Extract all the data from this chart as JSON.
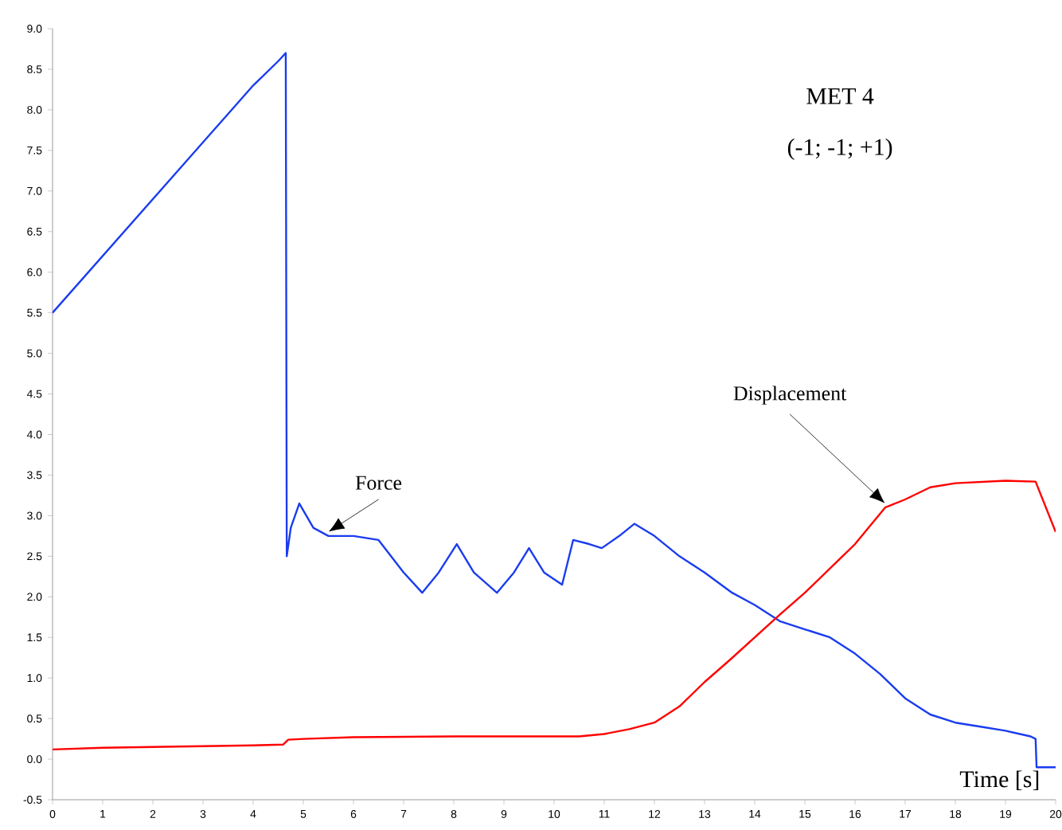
{
  "chart_data": {
    "type": "line",
    "xlabel": "Time  [s]",
    "annotations": [
      "MET 4",
      "(-1; -1; +1)"
    ],
    "series": [
      {
        "name": "Force",
        "color": "#1a3cf0",
        "x": [
          0,
          0.5,
          1,
          1.5,
          2,
          2.5,
          3,
          3.5,
          4,
          4.5,
          4.65,
          4.67,
          4.75,
          4.92,
          5.2,
          5.5,
          6,
          6.5,
          7,
          7.37,
          7.7,
          8.06,
          8.4,
          8.86,
          9.2,
          9.5,
          9.8,
          10.16,
          10.38,
          10.7,
          10.95,
          11.3,
          11.6,
          12,
          12.5,
          13,
          13.55,
          14,
          14.5,
          15,
          15.5,
          16,
          16.5,
          17,
          17.5,
          18,
          18.5,
          19,
          19.5,
          19.6,
          19.62,
          20
        ],
        "values": [
          5.5,
          5.85,
          6.2,
          6.55,
          6.9,
          7.25,
          7.6,
          7.95,
          8.3,
          8.6,
          8.7,
          2.5,
          2.85,
          3.15,
          2.85,
          2.75,
          2.75,
          2.7,
          2.3,
          2.05,
          2.3,
          2.65,
          2.3,
          2.05,
          2.3,
          2.6,
          2.3,
          2.15,
          2.7,
          2.65,
          2.6,
          2.75,
          2.9,
          2.75,
          2.5,
          2.3,
          2.05,
          1.9,
          1.7,
          1.6,
          1.5,
          1.3,
          1.05,
          0.75,
          0.55,
          0.45,
          0.4,
          0.35,
          0.28,
          0.25,
          -0.1,
          -0.1
        ]
      },
      {
        "name": "Displacement",
        "color": "#ff0000",
        "x": [
          0,
          1,
          2,
          3,
          4,
          4.6,
          4.7,
          5,
          6,
          8,
          10.5,
          11,
          11.5,
          12,
          12.5,
          13,
          13.5,
          14,
          14.5,
          15,
          15.5,
          16,
          16.6,
          17,
          17.5,
          18,
          19,
          19.6,
          20
        ],
        "values": [
          0.12,
          0.14,
          0.15,
          0.16,
          0.17,
          0.18,
          0.24,
          0.25,
          0.27,
          0.28,
          0.28,
          0.31,
          0.37,
          0.45,
          0.65,
          0.95,
          1.22,
          1.5,
          1.78,
          2.05,
          2.35,
          2.65,
          3.1,
          3.2,
          3.35,
          3.4,
          3.43,
          3.42,
          2.8
        ]
      }
    ],
    "xlim": [
      0,
      20
    ],
    "ylim": [
      -0.5,
      9.0
    ],
    "xticks": [
      0,
      1,
      2,
      3,
      4,
      5,
      6,
      7,
      8,
      9,
      10,
      11,
      12,
      13,
      14,
      15,
      16,
      17,
      18,
      19,
      20
    ],
    "yticks": [
      {
        "value": -0.5,
        "label": "-0.5"
      },
      {
        "value": 0,
        "label": "0.0"
      },
      {
        "value": 0.5,
        "label": "0.5"
      },
      {
        "value": 1,
        "label": "1.0"
      },
      {
        "value": 1.5,
        "label": "1.5"
      },
      {
        "value": 2,
        "label": "2.0"
      },
      {
        "value": 2.5,
        "label": "2.5"
      },
      {
        "value": 3,
        "label": "3.0"
      },
      {
        "value": 3.5,
        "label": "3.5"
      },
      {
        "value": 4,
        "label": "4.0"
      },
      {
        "value": 4.5,
        "label": "4.5"
      },
      {
        "value": 5,
        "label": "5.0"
      },
      {
        "value": 5.5,
        "label": "5.5"
      },
      {
        "value": 6,
        "label": "6.0"
      },
      {
        "value": 6.5,
        "label": "6.5"
      },
      {
        "value": 7,
        "label": "7.0"
      },
      {
        "value": 7.5,
        "label": "7.5"
      },
      {
        "value": 8,
        "label": "8.0"
      },
      {
        "value": 8.5,
        "label": "8.5"
      },
      {
        "value": 9,
        "label": "9.0"
      }
    ],
    "grid": false,
    "marker": "none",
    "line_style": "solid"
  }
}
